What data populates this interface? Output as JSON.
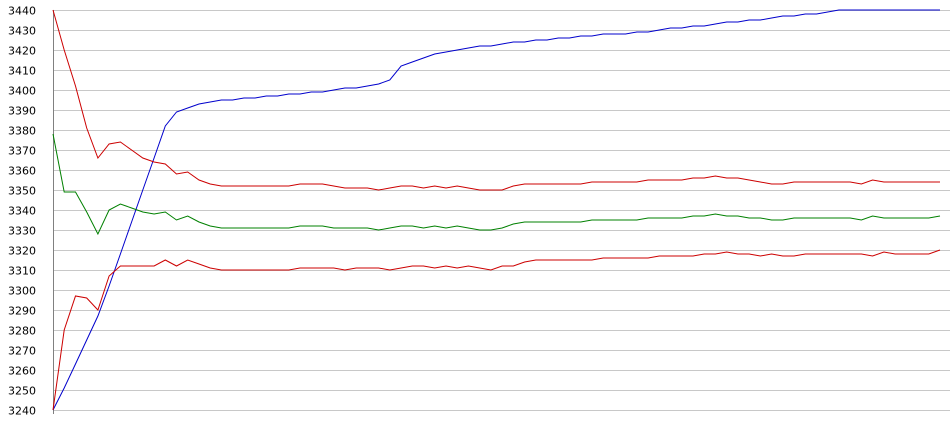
{
  "chart_data": {
    "type": "line",
    "title": "",
    "xlabel": "",
    "ylabel": "",
    "ylim": [
      3240,
      3440
    ],
    "yticks": [
      3240,
      3250,
      3260,
      3270,
      3280,
      3290,
      3300,
      3310,
      3320,
      3330,
      3340,
      3350,
      3360,
      3370,
      3380,
      3390,
      3400,
      3410,
      3420,
      3430,
      3440
    ],
    "grid": "horizontal",
    "legend": "none",
    "x": [
      0,
      1,
      2,
      3,
      4,
      5,
      6,
      7,
      8,
      9,
      10,
      11,
      12,
      13,
      14,
      15,
      16,
      17,
      18,
      19,
      20,
      21,
      22,
      23,
      24,
      25,
      26,
      27,
      28,
      29,
      30,
      31,
      32,
      33,
      34,
      35,
      36,
      37,
      38,
      39,
      40,
      41,
      42,
      43,
      44,
      45,
      46,
      47,
      48,
      49,
      50,
      51,
      52,
      53,
      54,
      55,
      56,
      57,
      58,
      59,
      60,
      61,
      62,
      63,
      64,
      65,
      66,
      67,
      68,
      69,
      70,
      71,
      72,
      73,
      74,
      75,
      76,
      77,
      78,
      79
    ],
    "series": [
      {
        "color": "#0000cc",
        "values": [
          3240,
          3251,
          3263,
          3275,
          3287,
          3302,
          3318,
          3334,
          3350,
          3366,
          3382,
          3389,
          3391,
          3393,
          3394,
          3395,
          3395,
          3396,
          3396,
          3397,
          3397,
          3398,
          3398,
          3399,
          3399,
          3400,
          3401,
          3401,
          3402,
          3403,
          3405,
          3412,
          3414,
          3416,
          3418,
          3419,
          3420,
          3421,
          3422,
          3422,
          3423,
          3424,
          3424,
          3425,
          3425,
          3426,
          3426,
          3427,
          3427,
          3428,
          3428,
          3428,
          3429,
          3429,
          3430,
          3431,
          3431,
          3432,
          3432,
          3433,
          3434,
          3434,
          3435,
          3435,
          3436,
          3437,
          3437,
          3438,
          3438,
          3439,
          3440,
          3440,
          3440,
          3440,
          3440,
          3440,
          3440,
          3440,
          3440,
          3440
        ]
      },
      {
        "color": "#cc0000",
        "values": [
          3440,
          3420,
          3402,
          3381,
          3366,
          3373,
          3374,
          3370,
          3366,
          3364,
          3363,
          3358,
          3359,
          3355,
          3353,
          3352,
          3352,
          3352,
          3352,
          3352,
          3352,
          3352,
          3353,
          3353,
          3353,
          3352,
          3351,
          3351,
          3351,
          3350,
          3351,
          3352,
          3352,
          3351,
          3352,
          3351,
          3352,
          3351,
          3350,
          3350,
          3350,
          3352,
          3353,
          3353,
          3353,
          3353,
          3353,
          3353,
          3354,
          3354,
          3354,
          3354,
          3354,
          3355,
          3355,
          3355,
          3355,
          3356,
          3356,
          3357,
          3356,
          3356,
          3355,
          3354,
          3353,
          3353,
          3354,
          3354,
          3354,
          3354,
          3354,
          3354,
          3353,
          3355,
          3354,
          3354,
          3354,
          3354,
          3354,
          3354
        ]
      },
      {
        "color": "#008000",
        "values": [
          3378,
          3349,
          3349,
          3339,
          3328,
          3340,
          3343,
          3341,
          3339,
          3338,
          3339,
          3335,
          3337,
          3334,
          3332,
          3331,
          3331,
          3331,
          3331,
          3331,
          3331,
          3331,
          3332,
          3332,
          3332,
          3331,
          3331,
          3331,
          3331,
          3330,
          3331,
          3332,
          3332,
          3331,
          3332,
          3331,
          3332,
          3331,
          3330,
          3330,
          3331,
          3333,
          3334,
          3334,
          3334,
          3334,
          3334,
          3334,
          3335,
          3335,
          3335,
          3335,
          3335,
          3336,
          3336,
          3336,
          3336,
          3337,
          3337,
          3338,
          3337,
          3337,
          3336,
          3336,
          3335,
          3335,
          3336,
          3336,
          3336,
          3336,
          3336,
          3336,
          3335,
          3337,
          3336,
          3336,
          3336,
          3336,
          3336,
          3337
        ]
      },
      {
        "color": "#cc0000",
        "values": [
          3240,
          3280,
          3297,
          3296,
          3290,
          3307,
          3312,
          3312,
          3312,
          3312,
          3315,
          3312,
          3315,
          3313,
          3311,
          3310,
          3310,
          3310,
          3310,
          3310,
          3310,
          3310,
          3311,
          3311,
          3311,
          3311,
          3310,
          3311,
          3311,
          3311,
          3310,
          3311,
          3312,
          3312,
          3311,
          3312,
          3311,
          3312,
          3311,
          3310,
          3312,
          3312,
          3314,
          3315,
          3315,
          3315,
          3315,
          3315,
          3315,
          3316,
          3316,
          3316,
          3316,
          3316,
          3317,
          3317,
          3317,
          3317,
          3318,
          3318,
          3319,
          3318,
          3318,
          3317,
          3318,
          3317,
          3317,
          3318,
          3318,
          3318,
          3318,
          3318,
          3318,
          3317,
          3319,
          3318,
          3318,
          3318,
          3318,
          3320
        ]
      }
    ]
  }
}
